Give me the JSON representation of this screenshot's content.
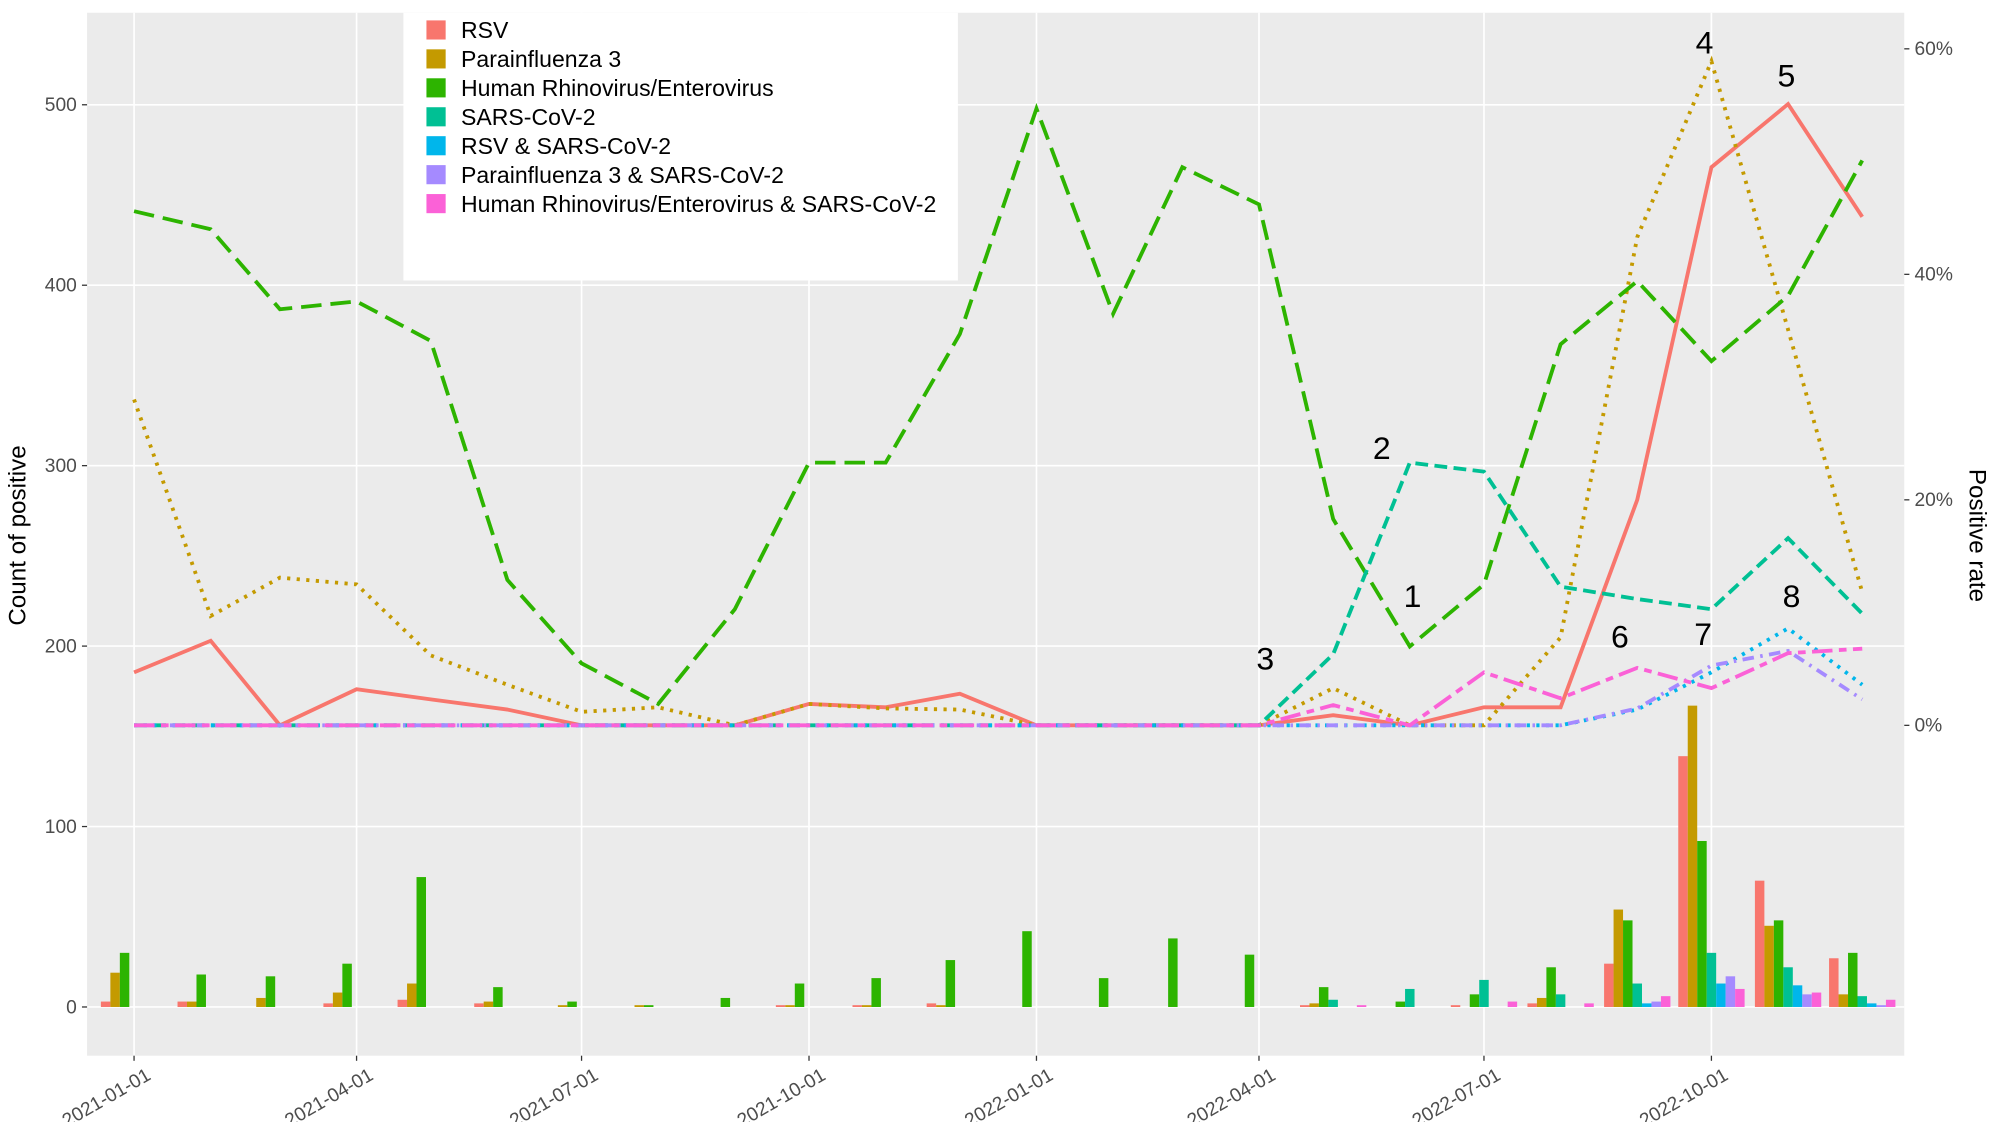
{
  "chart_data": {
    "type": "bar-line",
    "y_label": "Count of positive",
    "y2_label": "Positive rate",
    "x": [
      "2021-01-01",
      "2021-02-01",
      "2021-03-01",
      "2021-04-01",
      "2021-05-01",
      "2021-06-01",
      "2021-07-01",
      "2021-08-01",
      "2021-09-01",
      "2021-10-01",
      "2021-11-01",
      "2021-12-01",
      "2022-01-01",
      "2022-02-01",
      "2022-03-01",
      "2022-04-01",
      "2022-05-01",
      "2022-06-01",
      "2022-07-01",
      "2022-08-01",
      "2022-09-01",
      "2022-10-01",
      "2022-11-01",
      "2022-12-01"
    ],
    "xlim": [
      "2020-12-13",
      "2022-12-18"
    ],
    "xticks": [
      "2021-01-01",
      "2021-04-01",
      "2021-07-01",
      "2021-10-01",
      "2022-01-01",
      "2022-04-01",
      "2022-07-01",
      "2022-10-01"
    ],
    "ylim": [
      -27,
      551
    ],
    "yticks": [
      0,
      100,
      200,
      300,
      400,
      500
    ],
    "y2lim": [
      -29.3,
      63.2
    ],
    "y2ticks": [
      {
        "value": 0,
        "label": "0%"
      },
      {
        "value": 20,
        "label": "20%"
      },
      {
        "value": 40,
        "label": "40%"
      },
      {
        "value": 60,
        "label": "60%"
      }
    ],
    "grid": true,
    "legend_position": "top-left",
    "series": [
      {
        "name": "RSV",
        "color": "#F8766D",
        "linetype": "solid",
        "values": [
          3,
          3,
          0,
          2,
          4,
          2,
          0,
          0,
          0,
          1,
          1,
          2,
          0,
          0,
          0,
          0,
          1,
          0,
          1,
          2,
          24,
          139,
          70,
          27
        ],
        "rates": [
          4.7,
          7.5,
          0,
          3.2,
          2.3,
          1.4,
          0,
          0,
          0,
          1.9,
          1.6,
          2.8,
          0,
          0,
          0,
          0,
          0.9,
          0,
          1.6,
          1.6,
          20.0,
          49.5,
          55.1,
          45.1
        ]
      },
      {
        "name": "Parainfluenza 3",
        "color": "#C49A00",
        "linetype": "dotted",
        "values": [
          19,
          3,
          5,
          8,
          13,
          3,
          1,
          1,
          0,
          1,
          1,
          1,
          0,
          0,
          0,
          0,
          2,
          0,
          0,
          5,
          54,
          167,
          45,
          7
        ],
        "rates": [
          28.9,
          9.7,
          13.1,
          12.5,
          6.2,
          3.6,
          1.2,
          1.6,
          0,
          1.9,
          1.5,
          1.4,
          0,
          0,
          0,
          0,
          3.3,
          0,
          0,
          7.8,
          43.3,
          58.9,
          35.1,
          11.8
        ]
      },
      {
        "name": "Human Rhinovirus/Enterovirus",
        "color": "#2DB400",
        "linetype": "longdash",
        "values": [
          30,
          18,
          17,
          24,
          72,
          11,
          3,
          1,
          5,
          13,
          16,
          26,
          42,
          16,
          38,
          29,
          11,
          3,
          7,
          22,
          48,
          92,
          48,
          30
        ],
        "rates": [
          45.6,
          44.0,
          36.9,
          37.6,
          34.1,
          12.9,
          5.5,
          1.9,
          10.3,
          23.3,
          23.3,
          34.7,
          54.7,
          36.5,
          49.5,
          46.2,
          18.3,
          7.0,
          12.5,
          33.8,
          39.4,
          32.3,
          38.1,
          50.1
        ]
      },
      {
        "name": "SARS-CoV-2",
        "color": "#00C094",
        "linetype": "dashed",
        "values": [
          0,
          0,
          0,
          0,
          0,
          0,
          0,
          0,
          0,
          0,
          0,
          0,
          0,
          0,
          0,
          0,
          4,
          10,
          15,
          7,
          13,
          30,
          22,
          6
        ],
        "rates": [
          0,
          0,
          0,
          0,
          0,
          0,
          0,
          0,
          0,
          0,
          0,
          0,
          0,
          0,
          0,
          0,
          6.3,
          23.3,
          22.5,
          12.3,
          11.2,
          10.3,
          16.6,
          9.9
        ]
      },
      {
        "name": "RSV & SARS-CoV-2",
        "color": "#00B6EB",
        "linetype": "dotted",
        "values": [
          0,
          0,
          0,
          0,
          0,
          0,
          0,
          0,
          0,
          0,
          0,
          0,
          0,
          0,
          0,
          0,
          0,
          0,
          0,
          0,
          2,
          13,
          12,
          2
        ],
        "rates": [
          0,
          0,
          0,
          0,
          0,
          0,
          0,
          0,
          0,
          0,
          0,
          0,
          0,
          0,
          0,
          0,
          0,
          0,
          0,
          0,
          1.4,
          4.7,
          8.6,
          3.6
        ]
      },
      {
        "name": "Parainfluenza 3 & SARS-CoV-2",
        "color": "#A58AFF",
        "linetype": "dotdash",
        "values": [
          0,
          0,
          0,
          0,
          0,
          0,
          0,
          0,
          0,
          0,
          0,
          0,
          0,
          0,
          0,
          0,
          0,
          0,
          0,
          0,
          3,
          17,
          7,
          1
        ],
        "rates": [
          0,
          0,
          0,
          0,
          0,
          0,
          0,
          0,
          0,
          0,
          0,
          0,
          0,
          0,
          0,
          0,
          0,
          0,
          0,
          0,
          1.5,
          5.3,
          6.6,
          2.3
        ]
      },
      {
        "name": "Human Rhinovirus/Enterovirus & SARS-CoV-2",
        "color": "#FB61D7",
        "linetype": "twodash",
        "values": [
          0,
          0,
          0,
          0,
          0,
          0,
          0,
          0,
          0,
          0,
          0,
          0,
          0,
          0,
          0,
          0,
          1,
          0,
          3,
          2,
          6,
          10,
          8,
          4
        ],
        "rates": [
          0,
          0,
          0,
          0,
          0,
          0,
          0,
          0,
          0,
          0,
          0,
          0,
          0,
          0,
          0,
          0,
          1.8,
          0,
          4.7,
          2.4,
          5.1,
          3.3,
          6.4,
          6.8
        ]
      }
    ],
    "annotations": [
      "1",
      "2",
      "3",
      "4",
      "5",
      "6",
      "7",
      "8"
    ]
  }
}
